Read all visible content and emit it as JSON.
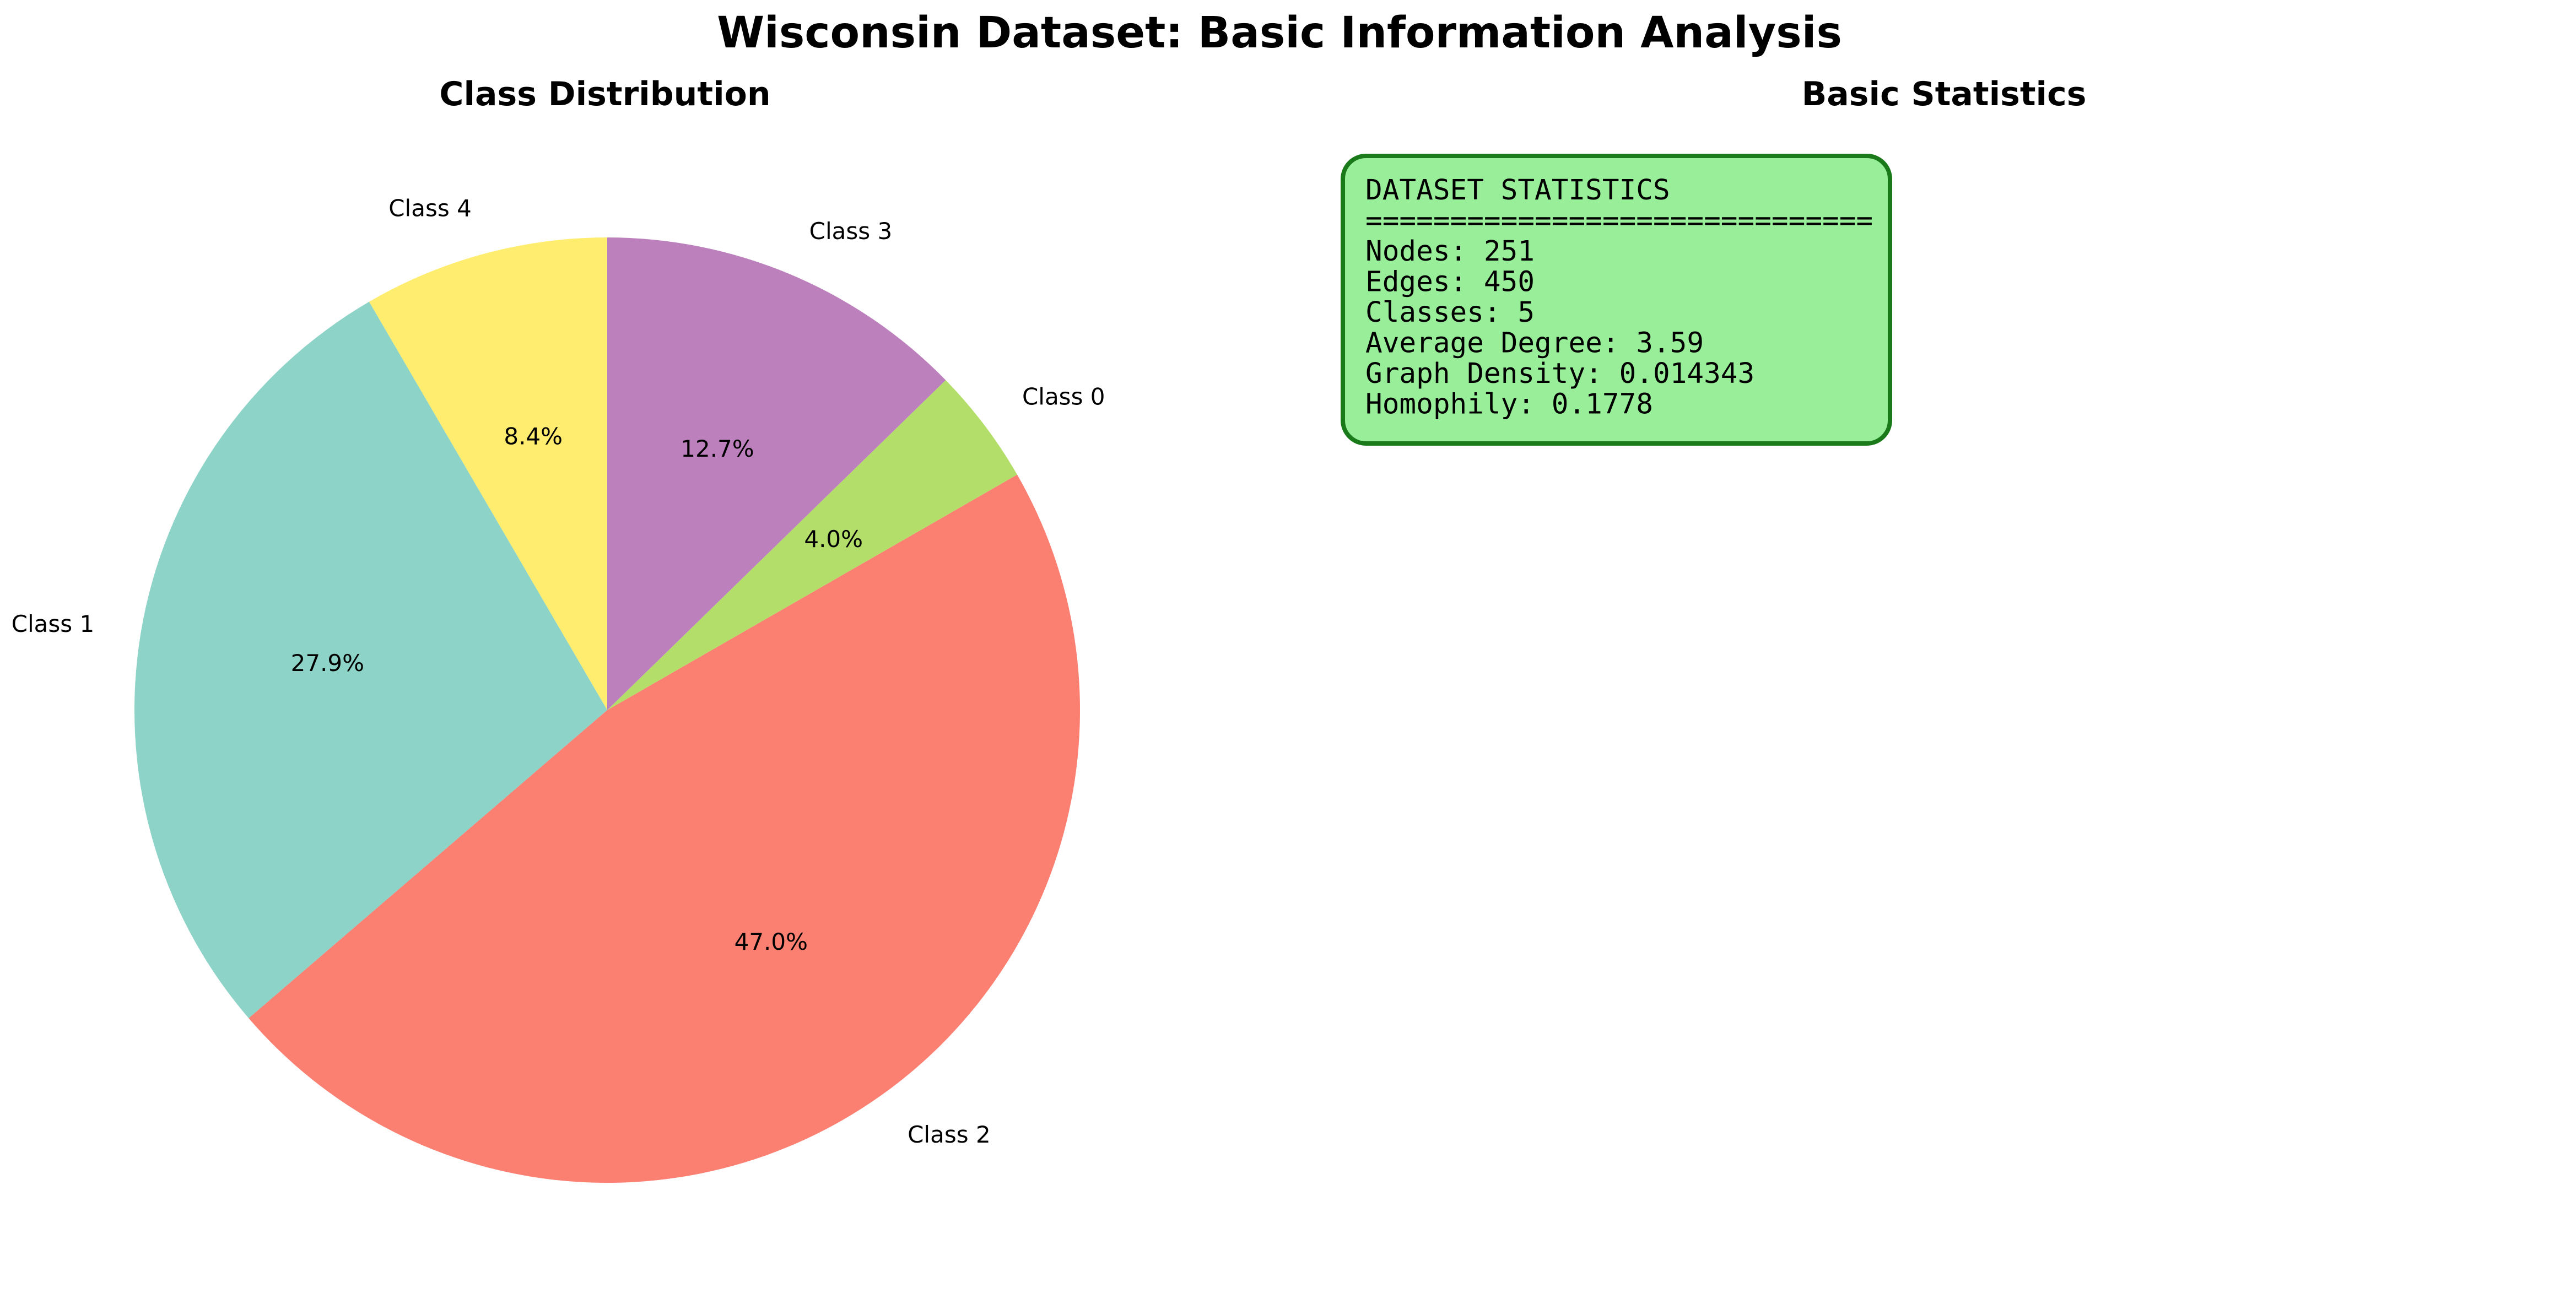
{
  "suptitle": "Wisconsin Dataset: Basic Information Analysis",
  "chart_data": [
    {
      "type": "pie",
      "title": "Class Distribution",
      "start_angle_deg": 90,
      "direction": "counterclockwise",
      "slices": [
        {
          "label": "Class 0",
          "value": 4.0,
          "pct_label": "4.0%",
          "color": "#b3de69"
        },
        {
          "label": "Class 1",
          "value": 27.9,
          "pct_label": "27.9%",
          "color": "#8dd3c7"
        },
        {
          "label": "Class 2",
          "value": 47.0,
          "pct_label": "47.0%",
          "color": "#fb8072"
        },
        {
          "label": "Class 3",
          "value": 12.7,
          "pct_label": "12.7%",
          "color": "#bc80bd"
        },
        {
          "label": "Class 4",
          "value": 8.4,
          "pct_label": "8.4%",
          "color": "#ffed6f"
        }
      ]
    }
  ],
  "stats_panel": {
    "title": "Basic Statistics",
    "box_fill": "#99ee99",
    "box_edge": "#1a7a1a",
    "lines": [
      "DATASET STATISTICS",
      "==============================",
      "Nodes: 251",
      "Edges: 450",
      "Classes: 5",
      "Average Degree: 3.59",
      "Graph Density: 0.014343",
      "Homophily: 0.1778"
    ]
  }
}
